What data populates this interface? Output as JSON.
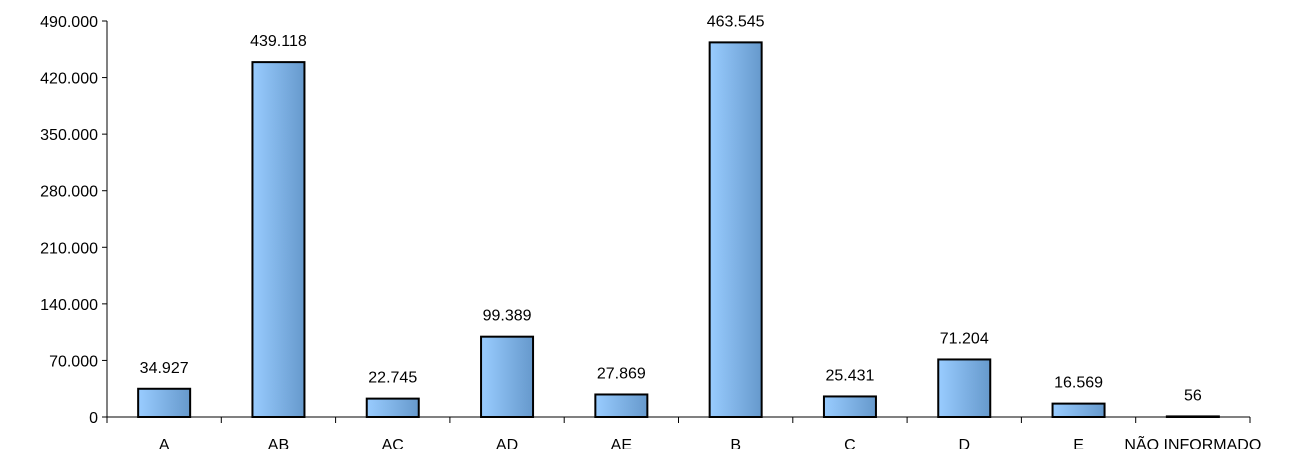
{
  "chart_data": {
    "type": "bar",
    "categories": [
      "A",
      "AB",
      "AC",
      "AD",
      "AE",
      "B",
      "C",
      "D",
      "E",
      "NÃO INFORMADO"
    ],
    "values": [
      34927,
      439118,
      22745,
      99389,
      27869,
      463545,
      25431,
      71204,
      16569,
      56
    ],
    "value_labels": [
      "34.927",
      "439.118",
      "22.745",
      "99.389",
      "27.869",
      "463.545",
      "25.431",
      "71.204",
      "16.569",
      "56"
    ],
    "yticks": [
      0,
      70000,
      140000,
      210000,
      280000,
      350000,
      420000,
      490000
    ],
    "ytick_labels": [
      "0",
      "70.000",
      "140.000",
      "210.000",
      "280.000",
      "350.000",
      "420.000",
      "490.000"
    ],
    "ylim": [
      0,
      490000
    ],
    "title": "",
    "xlabel": "",
    "ylabel": "",
    "grid": false,
    "legend": "none",
    "colors": {
      "bar_light": "#99CCFF",
      "bar_dark": "#6699CC",
      "bar_border": "#000000",
      "axis": "#000000"
    }
  }
}
